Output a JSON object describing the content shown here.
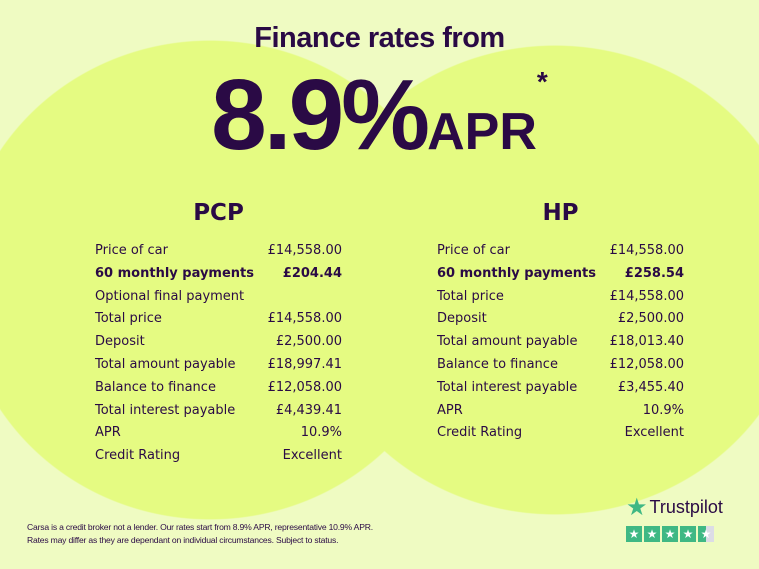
{
  "header": {
    "title": "Finance rates from",
    "rate": "8.9%",
    "apr": "APR",
    "asterisk": "*"
  },
  "plans": [
    {
      "name": "PCP",
      "rows": [
        {
          "label": "Price of car",
          "value": "£14,558.00"
        },
        {
          "label": "60 monthly payments",
          "value": "£204.44",
          "bold": true
        },
        {
          "label": "Optional final payment",
          "value": ""
        },
        {
          "label": "Total price",
          "value": "£14,558.00"
        },
        {
          "label": "Deposit",
          "value": "£2,500.00"
        },
        {
          "label": "Total amount payable",
          "value": "£18,997.41"
        },
        {
          "label": "Balance to finance",
          "value": "£12,058.00"
        },
        {
          "label": "Total interest payable",
          "value": "£4,439.41"
        },
        {
          "label": "APR",
          "value": "10.9%"
        },
        {
          "label": "Credit Rating",
          "value": "Excellent"
        }
      ]
    },
    {
      "name": "HP",
      "rows": [
        {
          "label": "Price of car",
          "value": "£14,558.00"
        },
        {
          "label": "60 monthly payments",
          "value": "£258.54",
          "bold": true
        },
        {
          "label": "Total price",
          "value": "£14,558.00"
        },
        {
          "label": "Deposit",
          "value": "£2,500.00"
        },
        {
          "label": "Total amount payable",
          "value": "£18,013.40"
        },
        {
          "label": "Balance to finance",
          "value": "£12,058.00"
        },
        {
          "label": "Total interest payable",
          "value": "£3,455.40"
        },
        {
          "label": "APR",
          "value": "10.9%"
        },
        {
          "label": "Credit Rating",
          "value": "Excellent"
        }
      ]
    }
  ],
  "disclaimer": [
    "Carsa is a credit broker not a lender. Our rates start from 8.9% APR, representative 10.9% APR.",
    "Rates may differ as they are dependant on individual circumstances. Subject to status."
  ],
  "trustpilot": {
    "name": "Trustpilot",
    "rating_stars": 4.5,
    "icon": "star-icon"
  },
  "colors": {
    "background": "#effbc2",
    "circle": "#e5fb82",
    "text": "#2a0a45",
    "trustpilot_green": "#3fb884"
  }
}
